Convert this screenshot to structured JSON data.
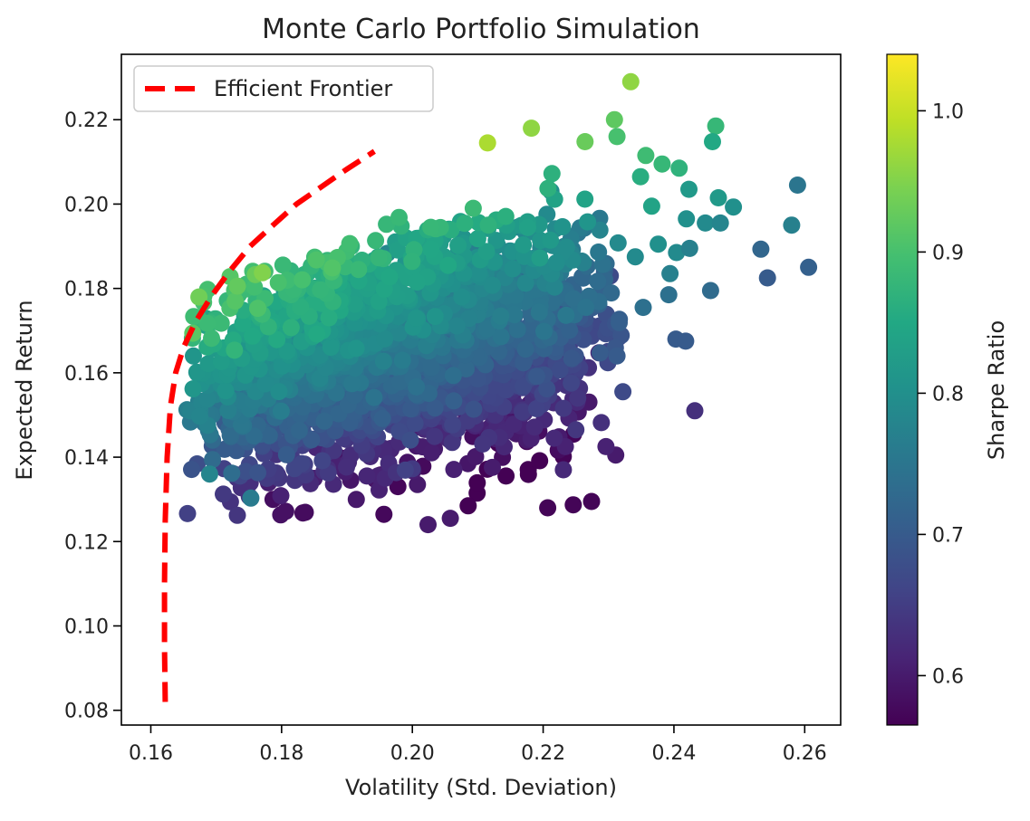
{
  "chart_data": {
    "type": "scatter",
    "title": "Monte Carlo Portfolio Simulation",
    "xlabel": "Volatility (Std. Deviation)",
    "ylabel": "Expected Return",
    "xlim": [
      0.1555,
      0.2655
    ],
    "ylim": [
      0.0765,
      0.2355
    ],
    "xticks": [
      "0.16",
      "0.18",
      "0.20",
      "0.22",
      "0.24",
      "0.26"
    ],
    "yticks": [
      "0.08",
      "0.10",
      "0.12",
      "0.14",
      "0.16",
      "0.18",
      "0.20",
      "0.22"
    ],
    "colorbar": {
      "label": "Sharpe Ratio",
      "range": [
        0.565,
        1.04
      ],
      "ticks": [
        "0.6",
        "0.7",
        "0.8",
        "0.9",
        "1.0"
      ],
      "colormap": "viridis"
    },
    "legend": {
      "placement": "upper-left",
      "entries": [
        "Efficient Frontier"
      ]
    },
    "frontier": {
      "name": "Efficient Frontier",
      "color": "#ff0000",
      "style": "dashed",
      "x": [
        0.1622,
        0.1621,
        0.1621,
        0.1622,
        0.1625,
        0.163,
        0.1638,
        0.165,
        0.1668,
        0.1692,
        0.172,
        0.1752,
        0.1787,
        0.1823,
        0.186,
        0.1897,
        0.1942
      ],
      "y": [
        0.082,
        0.095,
        0.11,
        0.125,
        0.14,
        0.152,
        0.16,
        0.166,
        0.172,
        0.178,
        0.184,
        0.19,
        0.195,
        0.2,
        0.204,
        0.208,
        0.2125
      ]
    },
    "scatter": {
      "marker": "circle",
      "color_by": "sharpe",
      "outliers": {
        "x": [
          0.2334,
          0.2464,
          0.2309,
          0.2182,
          0.2115,
          0.2264,
          0.2313,
          0.2357,
          0.2382,
          0.2408,
          0.2459,
          0.2349,
          0.2423,
          0.2468,
          0.2491,
          0.2589,
          0.258,
          0.2606,
          0.2533,
          0.2543,
          0.2366,
          0.2419,
          0.2448,
          0.2471,
          0.2404,
          0.2376,
          0.2424,
          0.2341,
          0.2456,
          0.2392,
          0.2353,
          0.2403,
          0.2207,
          0.2246,
          0.2274,
          0.2231,
          0.2311,
          0.2296,
          0.169,
          0.1753,
          0.2024,
          0.2058,
          0.2234,
          0.2217,
          0.225,
          0.2289,
          0.2322,
          0.2313,
          0.2418,
          0.2432,
          0.2394
        ],
        "y": [
          0.229,
          0.2185,
          0.22,
          0.218,
          0.2145,
          0.2148,
          0.216,
          0.2115,
          0.2095,
          0.2085,
          0.2148,
          0.2065,
          0.2035,
          0.2015,
          0.1993,
          0.2045,
          0.195,
          0.185,
          0.1893,
          0.1825,
          0.1995,
          0.1965,
          0.1955,
          0.1955,
          0.1885,
          0.1905,
          0.1895,
          0.1875,
          0.1795,
          0.1785,
          0.1755,
          0.168,
          0.128,
          0.1287,
          0.1295,
          0.137,
          0.1405,
          0.1425,
          0.136,
          0.1303,
          0.124,
          0.1255,
          0.1425,
          0.1445,
          0.1465,
          0.1482,
          0.1555,
          0.164,
          0.1675,
          0.151,
          0.1835
        ],
        "sharpe": [
          0.96,
          0.88,
          0.92,
          0.96,
          0.98,
          0.93,
          0.9,
          0.89,
          0.88,
          0.87,
          0.85,
          0.86,
          0.82,
          0.82,
          0.8,
          0.75,
          0.77,
          0.71,
          0.72,
          0.7,
          0.84,
          0.8,
          0.79,
          0.78,
          0.79,
          0.8,
          0.77,
          0.79,
          0.73,
          0.74,
          0.74,
          0.7,
          0.57,
          0.57,
          0.57,
          0.62,
          0.6,
          0.61,
          0.78,
          0.76,
          0.6,
          0.6,
          0.61,
          0.62,
          0.64,
          0.63,
          0.67,
          0.7,
          0.7,
          0.63,
          0.77
        ]
      }
    }
  }
}
